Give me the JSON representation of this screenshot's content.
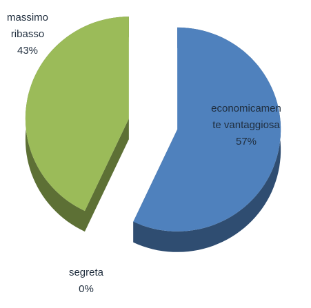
{
  "chart_data": {
    "type": "pie",
    "categories": [
      "economicamente vantaggiosa",
      "massimo ribasso",
      "segreta"
    ],
    "values": [
      57,
      43,
      0
    ],
    "value_labels": [
      "57%",
      "43%",
      "0%"
    ],
    "colors": [
      "#4f81bd",
      "#9bbb59",
      "#c0504d"
    ]
  }
}
